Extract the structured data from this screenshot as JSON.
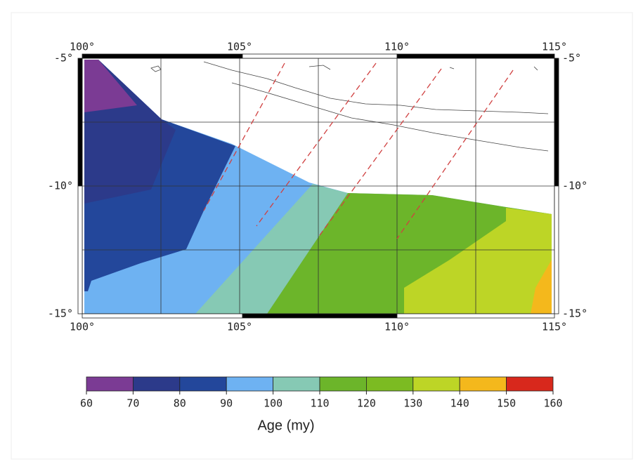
{
  "map": {
    "lon_labels": [
      "100°",
      "105°",
      "110°",
      "115°"
    ],
    "lat_labels": [
      "-5°",
      "-10°",
      "-15°"
    ]
  },
  "colorbar": {
    "ticks": [
      60,
      70,
      80,
      90,
      100,
      110,
      120,
      130,
      140,
      150,
      160
    ],
    "colors": [
      "#7b3b94",
      "#2c3a8a",
      "#23479b",
      "#6eb2f2",
      "#86c9b4",
      "#6cb52a",
      "#7cbb22",
      "#bdd526",
      "#f4b81c",
      "#d8281c"
    ],
    "label": "Age (my)"
  }
}
